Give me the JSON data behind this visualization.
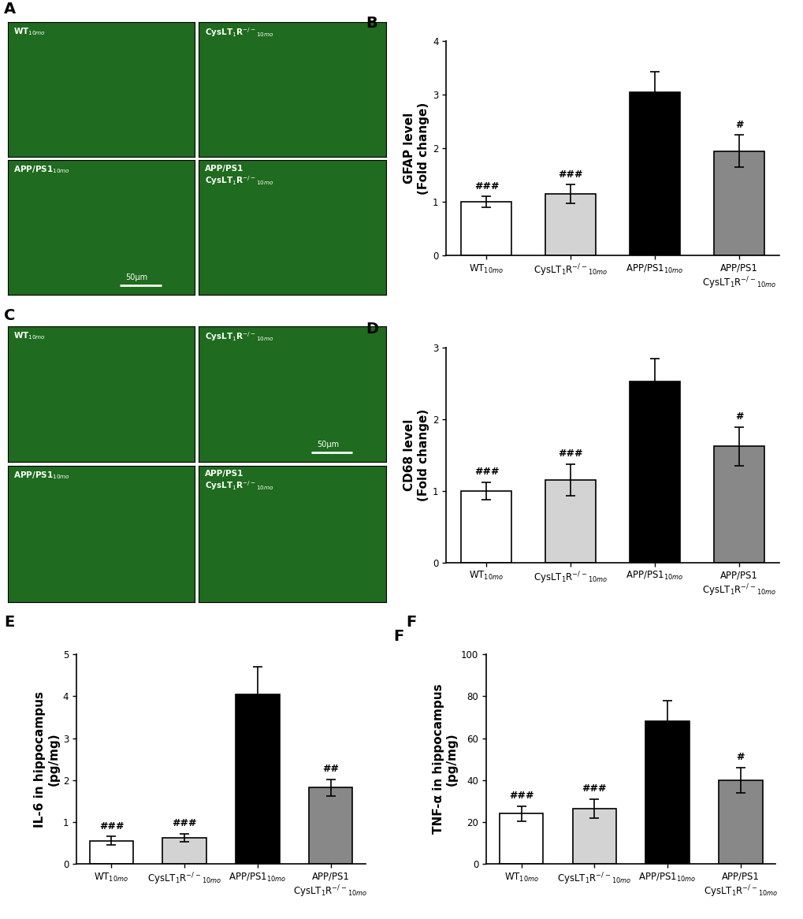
{
  "panel_B": {
    "values": [
      1.0,
      1.15,
      3.05,
      1.95
    ],
    "errors": [
      0.1,
      0.17,
      0.38,
      0.3
    ],
    "ylabel": "GFAP level\n(Fold change)",
    "ylim": [
      0,
      4
    ],
    "yticks": [
      0,
      1,
      2,
      3,
      4
    ],
    "annotations": [
      "###",
      "###",
      "",
      "#"
    ],
    "colors": [
      "#ffffff",
      "#d3d3d3",
      "#000000",
      "#888888"
    ],
    "label": "B"
  },
  "panel_D": {
    "values": [
      1.0,
      1.15,
      2.52,
      1.62
    ],
    "errors": [
      0.12,
      0.22,
      0.32,
      0.27
    ],
    "ylabel": "CD68 level\n(Fold change)",
    "ylim": [
      0,
      3
    ],
    "yticks": [
      0,
      1,
      2,
      3
    ],
    "annotations": [
      "###",
      "###",
      "",
      "#"
    ],
    "colors": [
      "#ffffff",
      "#d3d3d3",
      "#000000",
      "#888888"
    ],
    "label": "D"
  },
  "panel_E": {
    "values": [
      0.55,
      0.62,
      4.05,
      1.82
    ],
    "errors": [
      0.1,
      0.1,
      0.65,
      0.2
    ],
    "ylabel": "IL-6 in hippocampus\n(pg/mg)",
    "ylim": [
      0,
      5
    ],
    "yticks": [
      0,
      1,
      2,
      3,
      4,
      5
    ],
    "annotations": [
      "###",
      "###",
      "",
      "##"
    ],
    "colors": [
      "#ffffff",
      "#d3d3d3",
      "#000000",
      "#888888"
    ],
    "label": "E"
  },
  "panel_F": {
    "values": [
      24.0,
      26.5,
      68.0,
      40.0
    ],
    "errors": [
      3.5,
      4.5,
      10.0,
      6.0
    ],
    "ylabel": "TNF-α in hippocampus\n(pg/mg)",
    "ylim": [
      0,
      100
    ],
    "yticks": [
      0,
      20,
      40,
      60,
      80,
      100
    ],
    "annotations": [
      "###",
      "###",
      "",
      "#"
    ],
    "colors": [
      "#ffffff",
      "#d3d3d3",
      "#000000",
      "#888888"
    ],
    "label": "F"
  },
  "xticklabels": [
    "WT$_{10mo}$",
    "CysLT$_1$R$^{-/-}$$_{10mo}$",
    "APP/PS1$_{10mo}$",
    "APP/PS1\nCysLT$_1$R$^{-/-}$$_{10mo}$"
  ],
  "img_labels_top": [
    "WT$_{10mo}$",
    "CysLT$_1$R$^{-/-}$$_{10mo}$"
  ],
  "img_labels_bot": [
    "APP/PS1$_{10mo}$",
    "APP/PS1\nCysLT$_1$R$^{-/-}$$_{10mo}$"
  ],
  "bar_width": 0.6,
  "edgecolor": "#000000",
  "annotation_fontsize": 9,
  "label_fontsize": 11,
  "tick_fontsize": 8.5,
  "cap_size": 4,
  "img_green": "#1f6b1f",
  "background_color": "#ffffff",
  "panel_label_fontsize": 14
}
